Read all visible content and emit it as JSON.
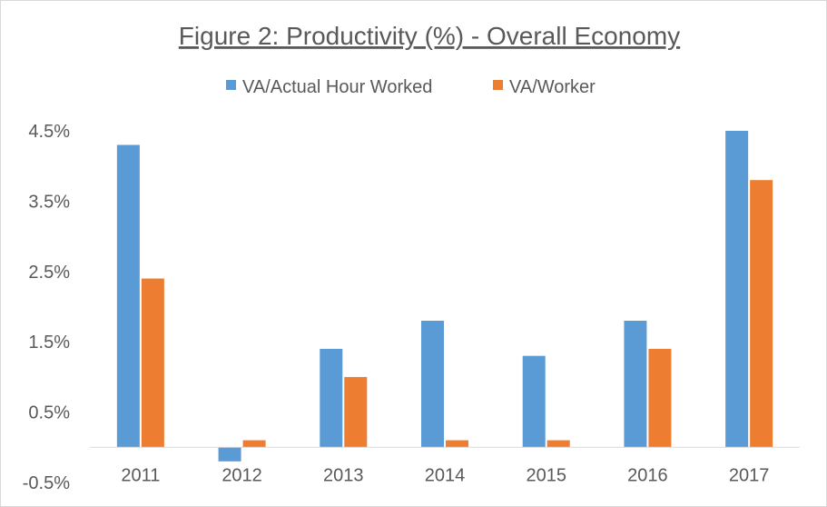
{
  "chart_data": {
    "type": "bar",
    "title": "Figure 2: Productivity (%) - Overall Economy",
    "categories": [
      "2011",
      "2012",
      "2013",
      "2014",
      "2015",
      "2016",
      "2017"
    ],
    "series": [
      {
        "name": "VA/Actual Hour Worked",
        "color": "#5b9bd5",
        "values": [
          4.3,
          -0.2,
          1.4,
          1.8,
          1.3,
          1.8,
          4.5
        ]
      },
      {
        "name": "VA/Worker",
        "color": "#ed7d31",
        "values": [
          2.4,
          0.1,
          1.0,
          0.1,
          0.1,
          1.4,
          3.8
        ]
      }
    ],
    "ylim": [
      -0.5,
      4.5
    ],
    "yticks": [
      "4.5%",
      "3.5%",
      "2.5%",
      "1.5%",
      "0.5%",
      "-0.5%"
    ],
    "xlabel": "",
    "ylabel": "",
    "legend": "top",
    "grid": false
  }
}
